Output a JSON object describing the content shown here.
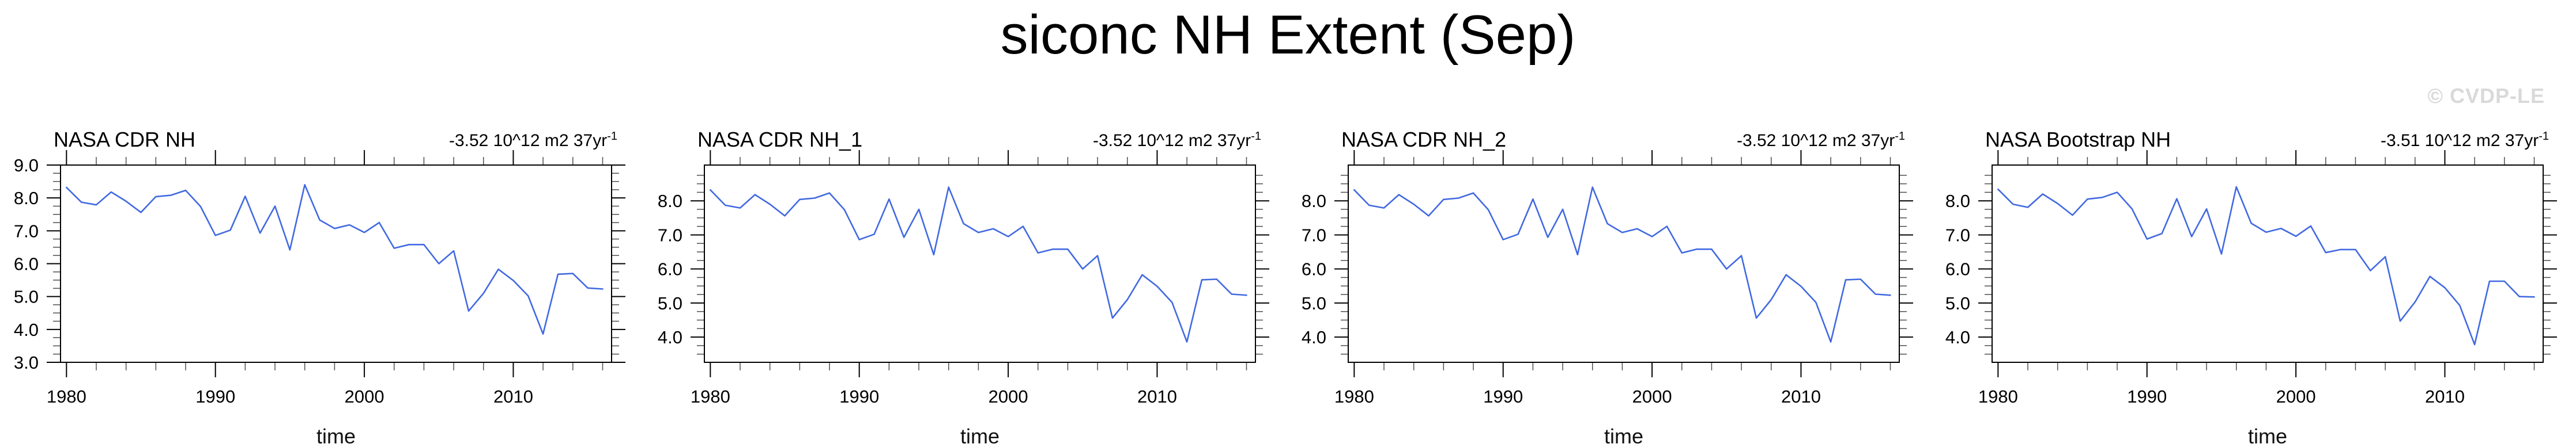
{
  "chart_data": {
    "type": "line",
    "title": "siconc NH Extent (Sep)",
    "watermark": "© CVDP-LE",
    "line_color": "#4169E1",
    "x": [
      1980,
      1981,
      1982,
      1983,
      1984,
      1985,
      1986,
      1987,
      1988,
      1989,
      1990,
      1991,
      1992,
      1993,
      1994,
      1995,
      1996,
      1997,
      1998,
      1999,
      2000,
      2001,
      2002,
      2003,
      2004,
      2005,
      2006,
      2007,
      2008,
      2009,
      2010,
      2011,
      2012,
      2013,
      2014,
      2015,
      2016
    ],
    "xlim": [
      1979.6,
      2016.6
    ],
    "x_major_ticks": [
      1980,
      1990,
      2000,
      2010
    ],
    "x_minor_step": 2,
    "y_minor_step": 0.25,
    "legend": "none",
    "grid": false,
    "panels": [
      {
        "label": "NASA CDR NH",
        "trend": "-3.52 10^12 m2 37yr",
        "trend_exp": "-1",
        "xlabel": "time",
        "ylabel_units": "10^12 m2",
        "ylim": [
          3.0,
          9.0
        ],
        "y_major_ticks": [
          9.0,
          8.0,
          7.0,
          6.0,
          5.0,
          4.0,
          3.0
        ],
        "values": [
          8.32,
          7.87,
          7.79,
          8.18,
          7.9,
          7.56,
          8.04,
          8.08,
          8.23,
          7.74,
          6.86,
          7.02,
          8.05,
          6.93,
          7.75,
          6.42,
          8.4,
          7.33,
          7.07,
          7.18,
          6.95,
          7.25,
          6.47,
          6.58,
          6.58,
          6.0,
          6.39,
          4.56,
          5.1,
          5.83,
          5.49,
          5.02,
          3.86,
          5.68,
          5.7,
          5.26,
          5.23
        ]
      },
      {
        "label": "NASA CDR NH_1",
        "trend": "-3.52 10^12 m2 37yr",
        "trend_exp": "-1",
        "xlabel": "time",
        "ylabel_units": "10^12 m2",
        "ylim": [
          3.26,
          9.05
        ],
        "y_major_ticks": [
          8.0,
          7.0,
          6.0,
          5.0,
          4.0
        ],
        "values": [
          8.32,
          7.87,
          7.79,
          8.18,
          7.9,
          7.56,
          8.04,
          8.08,
          8.23,
          7.74,
          6.86,
          7.02,
          8.05,
          6.93,
          7.75,
          6.42,
          8.4,
          7.33,
          7.07,
          7.18,
          6.95,
          7.25,
          6.47,
          6.58,
          6.58,
          6.0,
          6.39,
          4.56,
          5.1,
          5.83,
          5.49,
          5.02,
          3.86,
          5.68,
          5.7,
          5.26,
          5.23
        ]
      },
      {
        "label": "NASA CDR NH_2",
        "trend": "-3.52 10^12 m2 37yr",
        "trend_exp": "-1",
        "xlabel": "time",
        "ylabel_units": "10^12 m2",
        "ylim": [
          3.26,
          9.05
        ],
        "y_major_ticks": [
          8.0,
          7.0,
          6.0,
          5.0,
          4.0
        ],
        "values": [
          8.32,
          7.87,
          7.79,
          8.18,
          7.9,
          7.56,
          8.04,
          8.08,
          8.23,
          7.74,
          6.86,
          7.02,
          8.05,
          6.93,
          7.75,
          6.42,
          8.4,
          7.33,
          7.07,
          7.18,
          6.95,
          7.25,
          6.47,
          6.58,
          6.58,
          6.0,
          6.39,
          4.56,
          5.1,
          5.83,
          5.49,
          5.02,
          3.86,
          5.68,
          5.7,
          5.26,
          5.23
        ]
      },
      {
        "label": "NASA Bootstrap NH",
        "trend": "-3.51 10^12 m2 37yr",
        "trend_exp": "-1",
        "xlabel": "time",
        "ylabel_units": "10^12 m2",
        "ylim": [
          3.26,
          9.05
        ],
        "y_major_ticks": [
          8.0,
          7.0,
          6.0,
          5.0,
          4.0
        ],
        "values": [
          8.34,
          7.9,
          7.81,
          8.2,
          7.92,
          7.58,
          8.05,
          8.1,
          8.25,
          7.76,
          6.88,
          7.04,
          8.06,
          6.95,
          7.76,
          6.44,
          8.41,
          7.34,
          7.08,
          7.19,
          6.96,
          7.26,
          6.48,
          6.57,
          6.57,
          5.95,
          6.36,
          4.47,
          5.03,
          5.78,
          5.45,
          4.93,
          3.78,
          5.64,
          5.64,
          5.19,
          5.18
        ]
      }
    ]
  }
}
